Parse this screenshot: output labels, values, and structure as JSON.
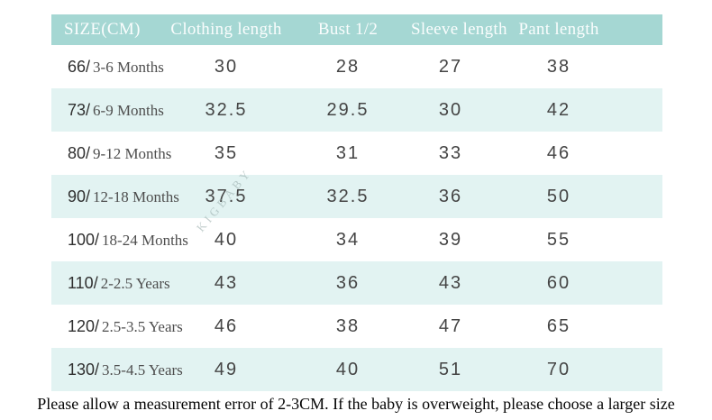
{
  "colors": {
    "header_bg": "#a5d7d3",
    "header_text": "#fafdfd",
    "row_bg": "#ffffff",
    "row_alt_bg": "#e2f3f2",
    "value_text": "#454545",
    "footer_text": "#050505"
  },
  "table": {
    "headers": [
      "SIZE(CM)",
      "Clothing length",
      "Bust 1/2",
      "Sleeve length",
      "Pant length"
    ],
    "rows": [
      {
        "size_num": "66/",
        "age": "3-6 Months",
        "clothing_length": "30",
        "bust_half": "28",
        "sleeve_length": "27",
        "pant_length": "38"
      },
      {
        "size_num": "73/",
        "age": "6-9 Months",
        "clothing_length": "32.5",
        "bust_half": "29.5",
        "sleeve_length": "30",
        "pant_length": "42"
      },
      {
        "size_num": "80/",
        "age": "9-12 Months",
        "clothing_length": "35",
        "bust_half": "31",
        "sleeve_length": "33",
        "pant_length": "46"
      },
      {
        "size_num": "90/",
        "age": "12-18 Months",
        "clothing_length": "37.5",
        "bust_half": "32.5",
        "sleeve_length": "36",
        "pant_length": "50"
      },
      {
        "size_num": "100/",
        "age": "18-24 Months",
        "clothing_length": "40",
        "bust_half": "34",
        "sleeve_length": "39",
        "pant_length": "55"
      },
      {
        "size_num": "110/",
        "age": "2-2.5 Years",
        "clothing_length": "43",
        "bust_half": "36",
        "sleeve_length": "43",
        "pant_length": "60"
      },
      {
        "size_num": "120/",
        "age": "2.5-3.5 Years",
        "clothing_length": "46",
        "bust_half": "38",
        "sleeve_length": "47",
        "pant_length": "65"
      },
      {
        "size_num": "130/",
        "age": "3.5-4.5 Years",
        "clothing_length": "49",
        "bust_half": "40",
        "sleeve_length": "51",
        "pant_length": "70"
      }
    ]
  },
  "watermark": {
    "text": "KIGBABY"
  },
  "footer": {
    "note": "Please allow a measurement error of 2-3CM. If the baby is overweight, please choose a larger size"
  },
  "chart_data": {
    "type": "table",
    "columns": [
      "SIZE(CM)",
      "Clothing length",
      "Bust 1/2",
      "Sleeve length",
      "Pant length"
    ],
    "rows": [
      [
        "66/3-6 Months",
        30,
        28,
        27,
        38
      ],
      [
        "73/ 6-9 Months",
        32.5,
        29.5,
        30,
        42
      ],
      [
        "80/9-12 Months",
        35,
        31,
        33,
        46
      ],
      [
        "90/12-18 Months",
        37.5,
        32.5,
        36,
        50
      ],
      [
        "100/18-24 Months",
        40,
        34,
        39,
        55
      ],
      [
        "110/ 2-2.5 Years",
        43,
        36,
        43,
        60
      ],
      [
        "120/ 2.5-3.5 Years",
        46,
        38,
        47,
        65
      ],
      [
        "130/ 3.5-4.5 Years",
        49,
        40,
        51,
        70
      ]
    ],
    "note": "Please allow a measurement error of 2-3CM. If the baby is overweight, please choose a larger size",
    "layout": {
      "header_style": "teal band, white serif text",
      "row_striping": "white / light teal alternating"
    }
  }
}
